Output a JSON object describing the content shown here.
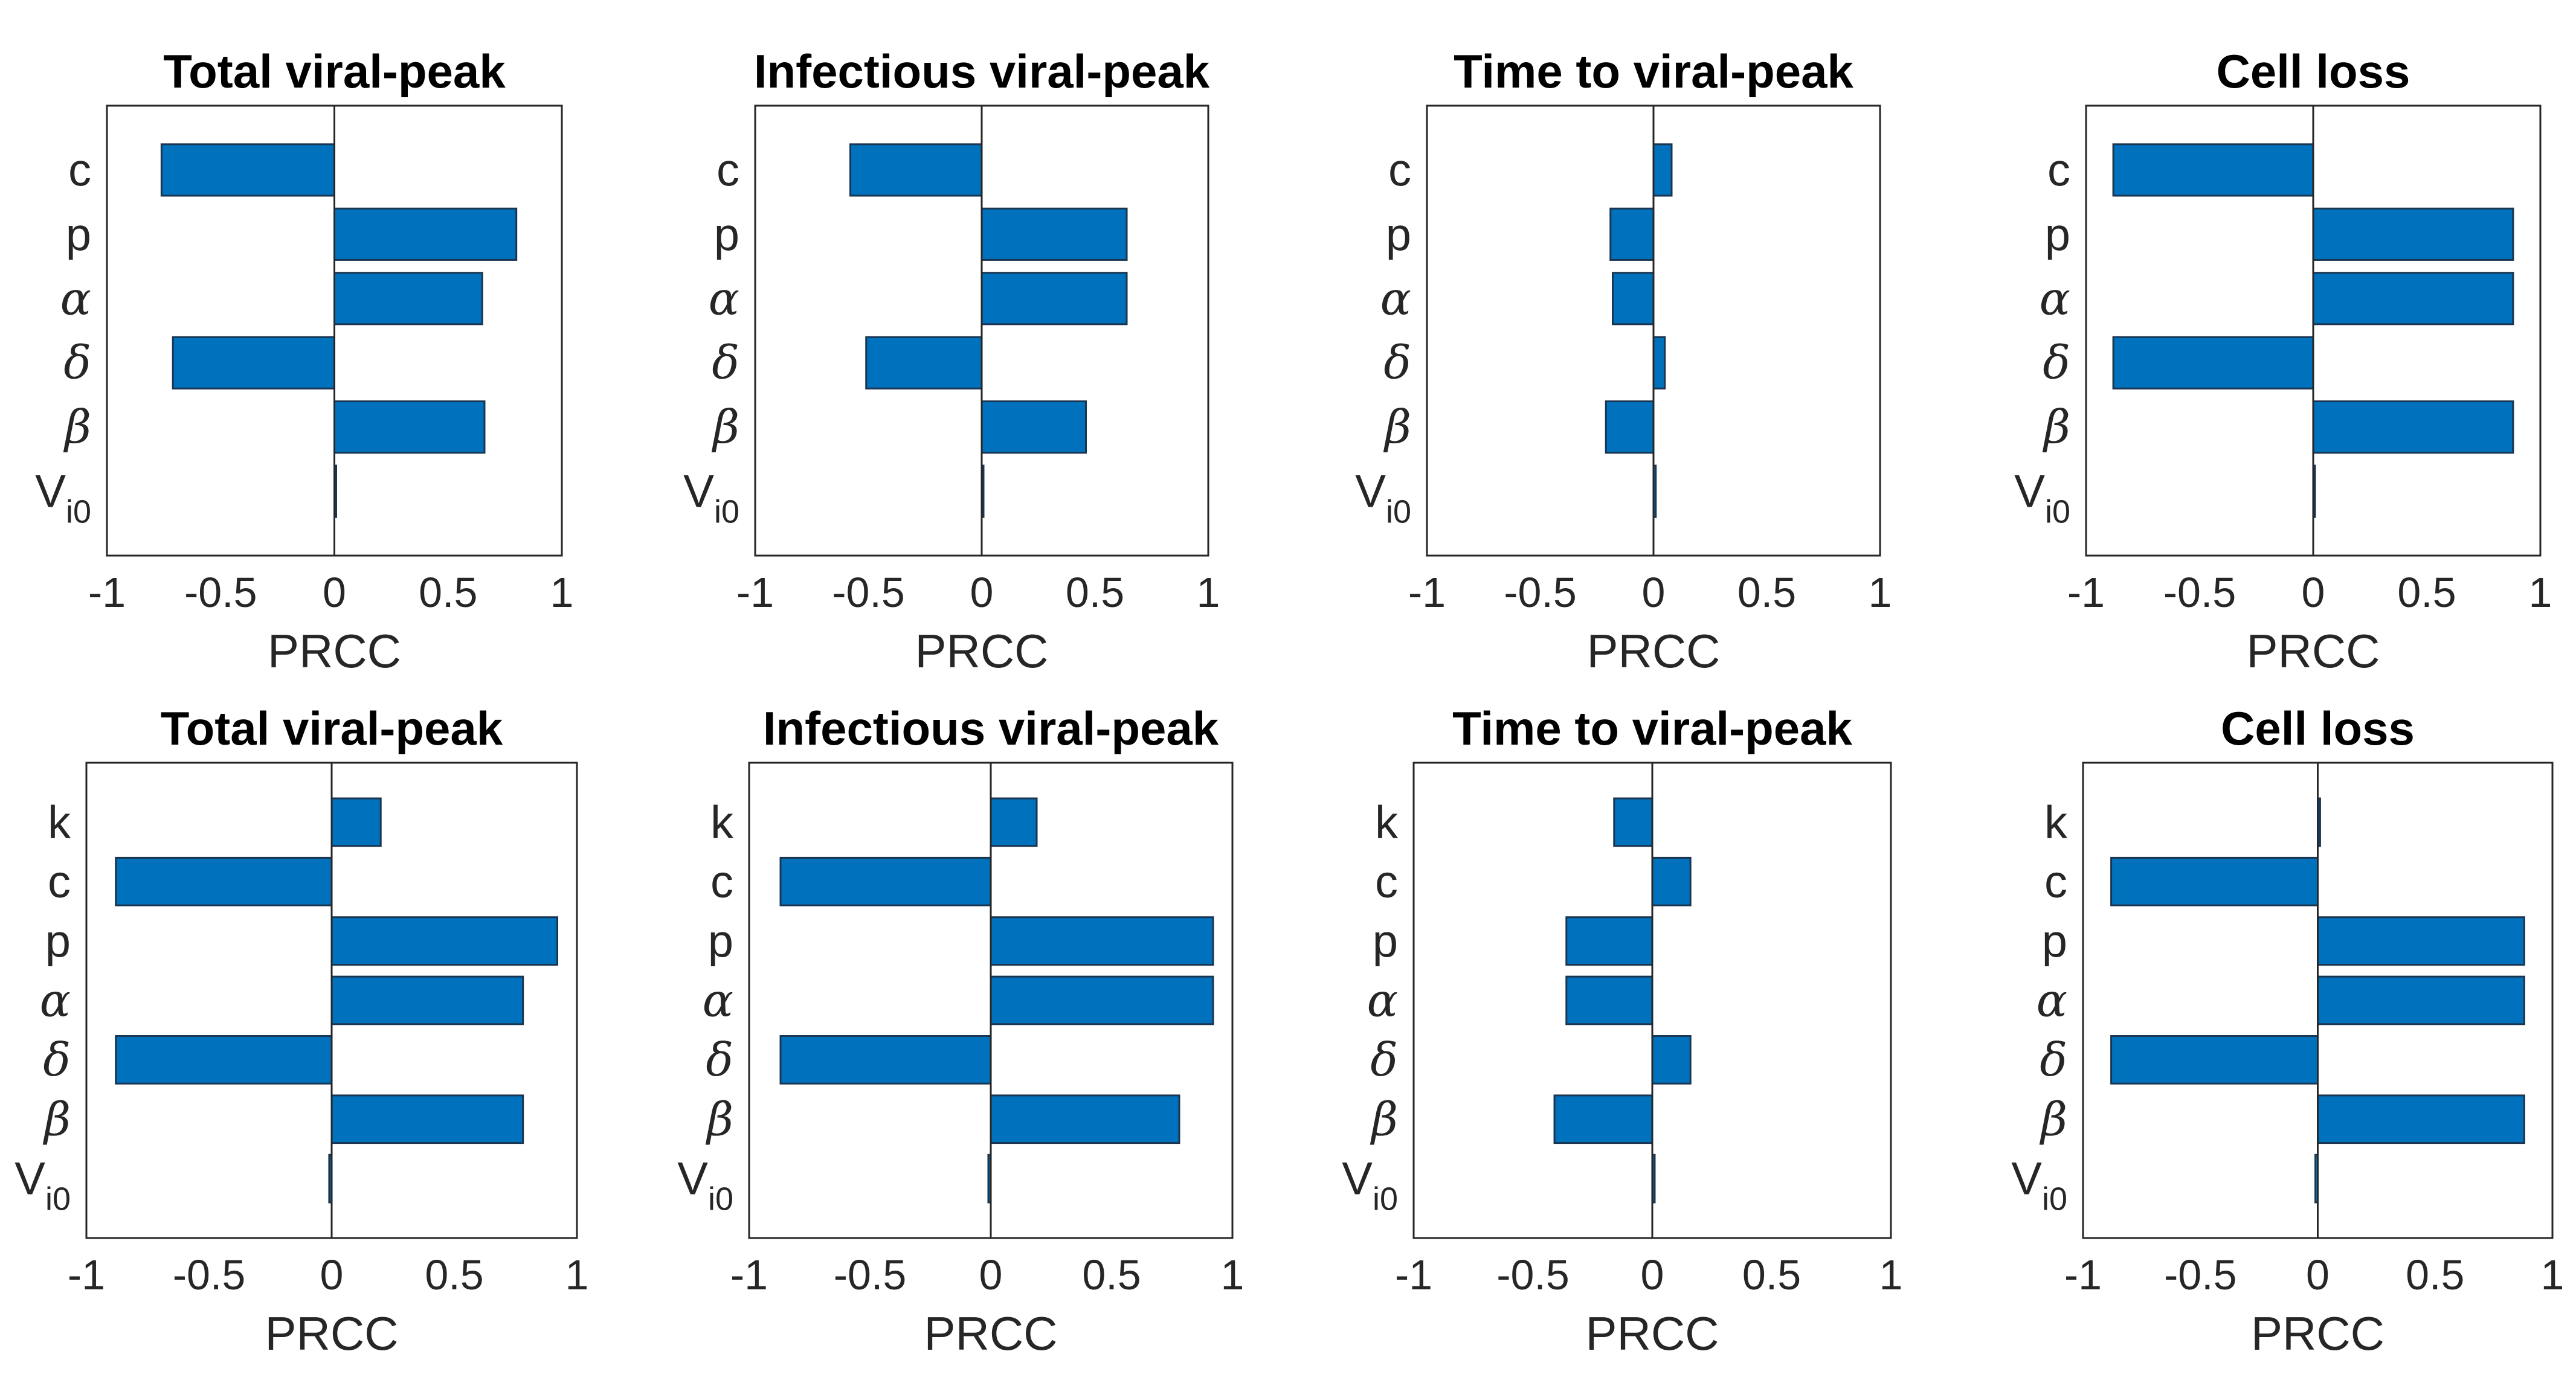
{
  "colors": {
    "bar": "#0072BD",
    "bar_edge": "#1a3550",
    "axis": "#262626"
  },
  "chart_data": [
    {
      "type": "bar",
      "orientation": "horizontal",
      "title": "Total viral-peak",
      "xlabel": "PRCC",
      "xlim": [
        -1,
        1
      ],
      "xticks": [
        "-1",
        "-0.5",
        "0",
        "0.5",
        "1"
      ],
      "categories": [
        {
          "label": "c",
          "greek": false
        },
        {
          "label": "p",
          "greek": false
        },
        {
          "label": "α",
          "greek": true
        },
        {
          "label": "δ",
          "greek": true
        },
        {
          "label": "β",
          "greek": true
        },
        {
          "label": "V",
          "sub": "i0",
          "greek": false
        }
      ],
      "values": [
        -0.76,
        0.8,
        0.65,
        -0.71,
        0.66,
        0.0
      ]
    },
    {
      "type": "bar",
      "orientation": "horizontal",
      "title": "Infectious viral-peak",
      "xlabel": "PRCC",
      "xlim": [
        -1,
        1
      ],
      "xticks": [
        "-1",
        "-0.5",
        "0",
        "0.5",
        "1"
      ],
      "categories": [
        {
          "label": "c",
          "greek": false
        },
        {
          "label": "p",
          "greek": false
        },
        {
          "label": "α",
          "greek": true
        },
        {
          "label": "δ",
          "greek": true
        },
        {
          "label": "β",
          "greek": true
        },
        {
          "label": "V",
          "sub": "i0",
          "greek": false
        }
      ],
      "values": [
        -0.58,
        0.64,
        0.64,
        -0.51,
        0.46,
        0.0
      ]
    },
    {
      "type": "bar",
      "orientation": "horizontal",
      "title": "Time to viral-peak",
      "xlabel": "PRCC",
      "xlim": [
        -1,
        1
      ],
      "xticks": [
        "-1",
        "-0.5",
        "0",
        "0.5",
        "1"
      ],
      "categories": [
        {
          "label": "c",
          "greek": false
        },
        {
          "label": "p",
          "greek": false
        },
        {
          "label": "α",
          "greek": true
        },
        {
          "label": "δ",
          "greek": true
        },
        {
          "label": "β",
          "greek": true
        },
        {
          "label": "V",
          "sub": "i0",
          "greek": false
        }
      ],
      "values": [
        0.08,
        -0.19,
        -0.18,
        0.05,
        -0.21,
        0.01
      ]
    },
    {
      "type": "bar",
      "orientation": "horizontal",
      "title": "Cell loss",
      "xlabel": "PRCC",
      "xlim": [
        -1,
        1
      ],
      "xticks": [
        "-1",
        "-0.5",
        "0",
        "0.5",
        "1"
      ],
      "categories": [
        {
          "label": "c",
          "greek": false
        },
        {
          "label": "p",
          "greek": false
        },
        {
          "label": "α",
          "greek": true
        },
        {
          "label": "δ",
          "greek": true
        },
        {
          "label": "β",
          "greek": true
        },
        {
          "label": "V",
          "sub": "i0",
          "greek": false
        }
      ],
      "values": [
        -0.88,
        0.88,
        0.88,
        -0.88,
        0.88,
        0.0
      ]
    },
    {
      "type": "bar",
      "orientation": "horizontal",
      "title": "Total viral-peak",
      "xlabel": "PRCC",
      "xlim": [
        -1,
        1
      ],
      "xticks": [
        "-1",
        "-0.5",
        "0",
        "0.5",
        "1"
      ],
      "categories": [
        {
          "label": "k",
          "greek": false
        },
        {
          "label": "c",
          "greek": false
        },
        {
          "label": "p",
          "greek": false
        },
        {
          "label": "α",
          "greek": true
        },
        {
          "label": "δ",
          "greek": true
        },
        {
          "label": "β",
          "greek": true
        },
        {
          "label": "V",
          "sub": "i0",
          "greek": false
        }
      ],
      "values": [
        0.2,
        -0.88,
        0.92,
        0.78,
        -0.88,
        0.78,
        -0.01
      ]
    },
    {
      "type": "bar",
      "orientation": "horizontal",
      "title": "Infectious viral-peak",
      "xlabel": "PRCC",
      "xlim": [
        -1,
        1
      ],
      "xticks": [
        "-1",
        "-0.5",
        "0",
        "0.5",
        "1"
      ],
      "categories": [
        {
          "label": "k",
          "greek": false
        },
        {
          "label": "c",
          "greek": false
        },
        {
          "label": "p",
          "greek": false
        },
        {
          "label": "α",
          "greek": true
        },
        {
          "label": "δ",
          "greek": true
        },
        {
          "label": "β",
          "greek": true
        },
        {
          "label": "V",
          "sub": "i0",
          "greek": false
        }
      ],
      "values": [
        0.19,
        -0.87,
        0.92,
        0.92,
        -0.87,
        0.78,
        -0.01
      ]
    },
    {
      "type": "bar",
      "orientation": "horizontal",
      "title": "Time to viral-peak",
      "xlabel": "PRCC",
      "xlim": [
        -1,
        1
      ],
      "xticks": [
        "-1",
        "-0.5",
        "0",
        "0.5",
        "1"
      ],
      "categories": [
        {
          "label": "k",
          "greek": false
        },
        {
          "label": "c",
          "greek": false
        },
        {
          "label": "p",
          "greek": false
        },
        {
          "label": "α",
          "greek": true
        },
        {
          "label": "δ",
          "greek": true
        },
        {
          "label": "β",
          "greek": true
        },
        {
          "label": "V",
          "sub": "i0",
          "greek": false
        }
      ],
      "values": [
        -0.16,
        0.16,
        -0.36,
        -0.36,
        0.16,
        -0.41,
        0.01
      ]
    },
    {
      "type": "bar",
      "orientation": "horizontal",
      "title": "Cell loss",
      "xlabel": "PRCC",
      "xlim": [
        -1,
        1
      ],
      "xticks": [
        "-1",
        "-0.5",
        "0",
        "0.5",
        "1"
      ],
      "categories": [
        {
          "label": "k",
          "greek": false
        },
        {
          "label": "c",
          "greek": false
        },
        {
          "label": "p",
          "greek": false
        },
        {
          "label": "α",
          "greek": true
        },
        {
          "label": "δ",
          "greek": true
        },
        {
          "label": "β",
          "greek": true
        },
        {
          "label": "V",
          "sub": "i0",
          "greek": false
        }
      ],
      "values": [
        0.01,
        -0.88,
        0.88,
        0.88,
        -0.88,
        0.88,
        -0.01
      ]
    }
  ]
}
